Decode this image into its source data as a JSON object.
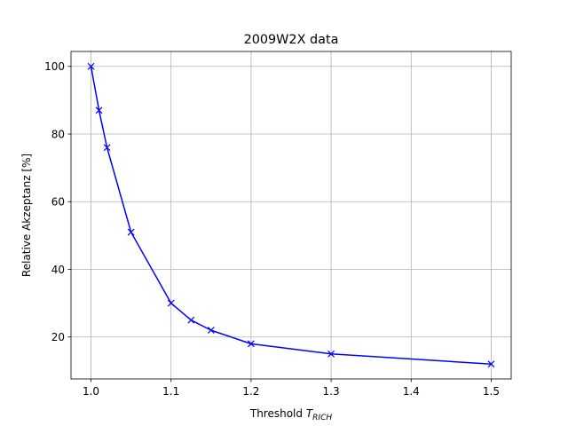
{
  "chart_data": {
    "type": "line",
    "title": "2009W2X data",
    "xlabel": {
      "main": "Threshold ",
      "symbol": "T",
      "subscript": "RICH"
    },
    "ylabel": "Relative Akzeptanz [%]",
    "xlim": [
      0.975,
      1.525
    ],
    "ylim": [
      7.6,
      104.4
    ],
    "xticks": [
      "1.0",
      "1.1",
      "1.2",
      "1.3",
      "1.4",
      "1.5"
    ],
    "yticks": [
      "20",
      "40",
      "60",
      "80",
      "100"
    ],
    "grid": true,
    "series": [
      {
        "color": "#0000ff",
        "marker": "x",
        "x": [
          1.0,
          1.01,
          1.02,
          1.05,
          1.1,
          1.125,
          1.15,
          1.2,
          1.3,
          1.5
        ],
        "y": [
          100,
          87,
          76,
          51,
          30,
          25,
          22,
          18,
          15,
          12
        ]
      }
    ]
  }
}
